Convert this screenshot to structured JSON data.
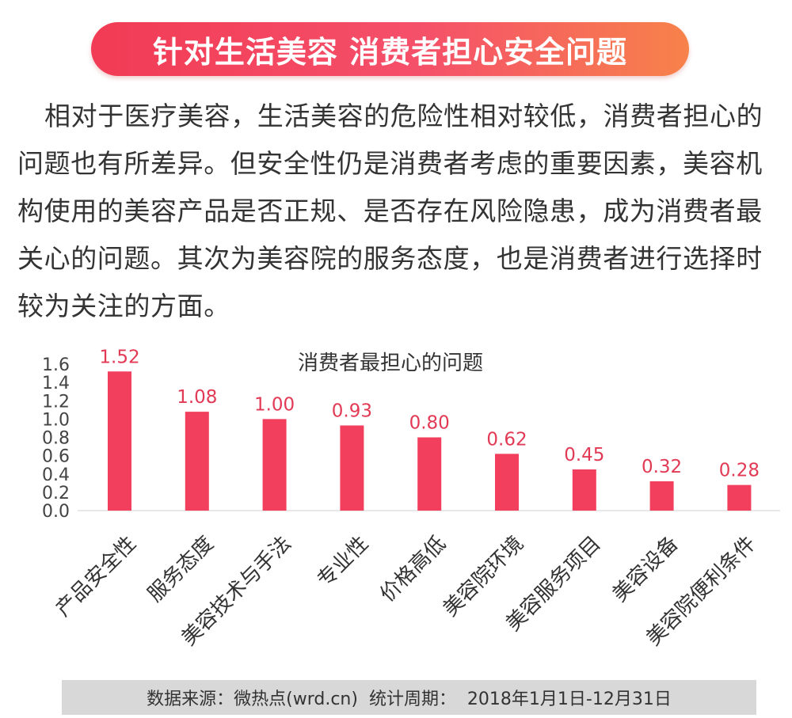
{
  "header": {
    "title": "针对生活美容 消费者担心安全问题"
  },
  "intro": {
    "text": "相对于医疗美容，生活美容的危险性相对较低，消费者担心的问题也有所差异。但安全性仍是消费者考虑的重要因素，美容机构使用的美容产品是否正规、是否存在风险隐患，成为消费者最关心的问题。其次为美容院的服务态度，也是消费者进行选择时较为关注的方面。"
  },
  "chart_data": {
    "type": "bar",
    "title": "消费者最担心的问题",
    "categories": [
      "产品安全性",
      "服务态度",
      "美容技术与手法",
      "专业性",
      "价格高低",
      "美容院环境",
      "美容服务项目",
      "美容设备",
      "美容院便利条件"
    ],
    "values": [
      1.52,
      1.08,
      1.0,
      0.93,
      0.8,
      0.62,
      0.45,
      0.32,
      0.28
    ],
    "value_labels": [
      "1.52",
      "1.08",
      "1.00",
      "0.93",
      "0.80",
      "0.62",
      "0.45",
      "0.32",
      "0.28"
    ],
    "ylim": [
      0,
      1.6
    ],
    "yticks": [
      "0.0",
      "0.2",
      "0.4",
      "0.6",
      "0.8",
      "1.0",
      "1.2",
      "1.4",
      "1.6"
    ],
    "grid": false,
    "legend": "none",
    "bar_color": "#f23f5e",
    "label_color": "#e23a55"
  },
  "footer": {
    "source": "数据来源：微热点(wrd.cn)  统计周期：  2018年1月1日-12月31日"
  }
}
